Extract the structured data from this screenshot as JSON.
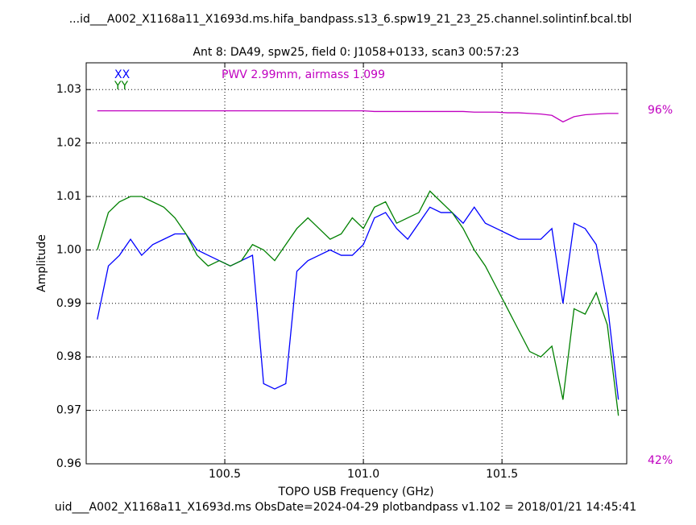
{
  "chart_data": {
    "type": "line",
    "title": "...id___A002_X1168a11_X1693d.ms.hifa_bandpass.s13_6.spw19_21_23_25.channel.solintinf.bcal.tbl",
    "subtitle": "Ant 8: DA49,  spw25,  field 0: J1058+0133,  scan3  00:57:23",
    "annotation": "PWV 2.99mm, airmass 1.099",
    "footer": "uid___A002_X1168a11_X1693d.ms  ObsDate=2024-04-29   plotbandpass v1.102 = 2018/01/21 14:45:41",
    "x_label": "TOPO USB Frequency (GHz)",
    "y_label": "Amplitude",
    "xlim": [
      100.0,
      101.95
    ],
    "ylim": [
      0.96,
      1.035
    ],
    "y2lim": [
      41.5,
      103.3
    ],
    "xticks": [
      100.5,
      {
        "value": 101.0,
        "label": "101.0"
      },
      101.5
    ],
    "yticks": [
      0.96,
      0.97,
      0.98,
      0.99,
      {
        "value": 1.0,
        "label": "1.00"
      },
      1.01,
      1.02,
      1.03
    ],
    "y2ticks": [
      {
        "value": 96,
        "label": "96%"
      },
      {
        "value": 42,
        "label": "42%"
      }
    ],
    "grid": true,
    "x": [
      100.04,
      100.08,
      100.12,
      100.16,
      100.2,
      100.24,
      100.28,
      100.32,
      100.36,
      100.4,
      100.44,
      100.48,
      100.52,
      100.56,
      100.6,
      100.64,
      100.68,
      100.72,
      100.76,
      100.8,
      100.84,
      100.88,
      100.92,
      100.96,
      101.0,
      101.04,
      101.08,
      101.12,
      101.16,
      101.2,
      101.24,
      101.28,
      101.32,
      101.36,
      101.4,
      101.44,
      101.48,
      101.52,
      101.56,
      101.6,
      101.64,
      101.68,
      101.72,
      101.76,
      101.8,
      101.84,
      101.88,
      101.92
    ],
    "series": [
      {
        "name": "XX",
        "color": "#0000ff",
        "values": [
          0.987,
          0.997,
          0.999,
          1.002,
          0.999,
          1.001,
          1.002,
          1.003,
          1.003,
          1.0,
          0.999,
          0.998,
          0.997,
          0.998,
          0.999,
          0.975,
          0.974,
          0.975,
          0.996,
          0.998,
          0.999,
          1.0,
          0.999,
          0.999,
          1.001,
          1.006,
          1.007,
          1.004,
          1.002,
          1.005,
          1.008,
          1.007,
          1.007,
          1.005,
          1.008,
          1.005,
          1.004,
          1.003,
          1.002,
          1.002,
          1.002,
          1.004,
          0.99,
          1.005,
          1.004,
          1.001,
          0.99,
          0.972
        ]
      },
      {
        "name": "YY",
        "color": "#008000",
        "values": [
          1.0,
          1.007,
          1.009,
          1.01,
          1.01,
          1.009,
          1.008,
          1.006,
          1.003,
          0.999,
          0.997,
          0.998,
          0.997,
          0.998,
          1.001,
          1.0,
          0.998,
          1.001,
          1.004,
          1.006,
          1.004,
          1.002,
          1.003,
          1.006,
          1.004,
          1.008,
          1.009,
          1.005,
          1.006,
          1.007,
          1.011,
          1.009,
          1.007,
          1.004,
          1.0,
          0.997,
          0.993,
          0.989,
          0.985,
          0.981,
          0.98,
          0.982,
          0.972,
          0.989,
          0.988,
          0.992,
          0.986,
          0.969
        ]
      },
      {
        "color": "#c000c0",
        "axis": "y2",
        "values": [
          95.9,
          95.9,
          95.9,
          95.9,
          95.9,
          95.9,
          95.9,
          95.9,
          95.9,
          95.9,
          95.9,
          95.9,
          95.9,
          95.9,
          95.9,
          95.9,
          95.9,
          95.9,
          95.9,
          95.9,
          95.9,
          95.9,
          95.9,
          95.9,
          95.9,
          95.8,
          95.8,
          95.8,
          95.8,
          95.8,
          95.8,
          95.8,
          95.8,
          95.8,
          95.7,
          95.7,
          95.7,
          95.6,
          95.6,
          95.5,
          95.4,
          95.2,
          94.2,
          95.0,
          95.3,
          95.4,
          95.5,
          95.5
        ]
      }
    ]
  }
}
